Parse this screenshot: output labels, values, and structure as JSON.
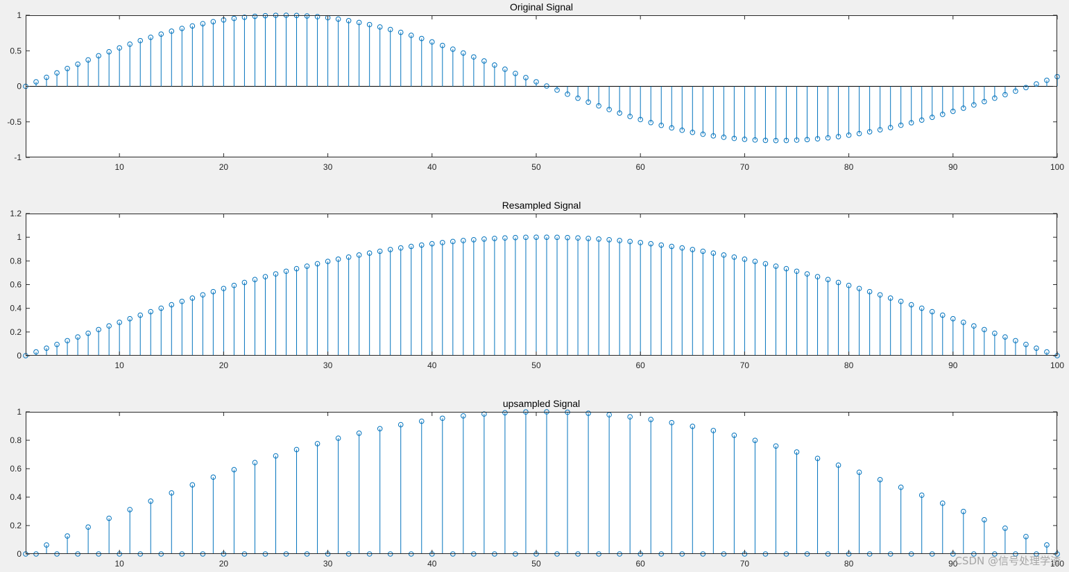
{
  "colors": {
    "figure_bg": "#f0f0f0",
    "axes_bg": "#ffffff",
    "axes_line": "#262626",
    "stem": "#0072bd"
  },
  "watermark": "CSDN @信号处理学渣",
  "chart_data": [
    {
      "type": "stem",
      "title": "Original Signal",
      "xlim": [
        1,
        100
      ],
      "ylim": [
        -1,
        1
      ],
      "xticks": [
        10,
        20,
        30,
        40,
        50,
        60,
        70,
        80,
        90,
        100
      ],
      "yticks": [
        -1,
        -0.5,
        0,
        0.5,
        1
      ],
      "ytick_labels": [
        "-1",
        "-0.5",
        "0",
        "0.5",
        "1"
      ],
      "x": [
        1,
        2,
        3,
        4,
        5,
        6,
        7,
        8,
        9,
        10,
        11,
        12,
        13,
        14,
        15,
        16,
        17,
        18,
        19,
        20,
        21,
        22,
        23,
        24,
        25,
        26,
        27,
        28,
        29,
        30,
        31,
        32,
        33,
        34,
        35,
        36,
        37,
        38,
        39,
        40,
        41,
        42,
        43,
        44,
        45,
        46,
        47,
        48,
        49,
        50,
        51,
        52,
        53,
        54,
        55,
        56,
        57,
        58,
        59,
        60,
        61,
        62,
        63,
        64,
        65,
        66,
        67,
        68,
        69,
        70,
        71,
        72,
        73,
        74,
        75,
        76,
        77,
        78,
        79,
        80,
        81,
        82,
        83,
        84,
        85,
        86,
        87,
        88,
        89,
        90,
        91,
        92,
        93,
        94,
        95,
        96,
        97,
        98,
        99,
        100
      ],
      "values": [
        0,
        0.0634,
        0.1266,
        0.1893,
        0.2511,
        0.312,
        0.3717,
        0.4298,
        0.4862,
        0.5406,
        0.5929,
        0.6428,
        0.6901,
        0.7346,
        0.7761,
        0.8146,
        0.8497,
        0.8815,
        0.9096,
        0.9341,
        0.9549,
        0.9718,
        0.9848,
        0.9938,
        0.9989,
        1.0,
        0.9971,
        0.9902,
        0.9794,
        0.9647,
        0.9461,
        0.9238,
        0.8978,
        0.8683,
        0.8353,
        0.7991,
        0.7597,
        0.7174,
        0.6724,
        0.6248,
        0.5748,
        0.5228,
        0.469,
        0.4135,
        0.3568,
        0.299,
        0.2405,
        0.1816,
        0.1225,
        0.0635,
        0.0048,
        -0.0534,
        -0.1108,
        -0.1671,
        -0.222,
        -0.2753,
        -0.3268,
        -0.3762,
        -0.4233,
        -0.4679,
        -0.5098,
        -0.5489,
        -0.585,
        -0.618,
        -0.6477,
        -0.6741,
        -0.6971,
        -0.7167,
        -0.7329,
        -0.7455,
        -0.7547,
        -0.7604,
        -0.7627,
        -0.7616,
        -0.7571,
        -0.7494,
        -0.7385,
        -0.7245,
        -0.7075,
        -0.6875,
        -0.6647,
        -0.6392,
        -0.6111,
        -0.5805,
        -0.5475,
        -0.5123,
        -0.4751,
        -0.4358,
        -0.3947,
        -0.3519,
        -0.3076,
        -0.2619,
        -0.215,
        -0.1669,
        -0.1179,
        -0.0681,
        -0.0177,
        0.0331,
        0.0842,
        0.1354
      ]
    },
    {
      "type": "stem",
      "title": "Resampled Signal",
      "xlim": [
        1,
        100
      ],
      "ylim": [
        0,
        1.2
      ],
      "xticks": [
        10,
        20,
        30,
        40,
        50,
        60,
        70,
        80,
        90,
        100
      ],
      "yticks": [
        0,
        0.2,
        0.4,
        0.6,
        0.8,
        1,
        1.2
      ],
      "ytick_labels": [
        "0",
        "0.2",
        "0.4",
        "0.6",
        "0.8",
        "1",
        "1.2"
      ],
      "x": [
        1,
        2,
        3,
        4,
        5,
        6,
        7,
        8,
        9,
        10,
        11,
        12,
        13,
        14,
        15,
        16,
        17,
        18,
        19,
        20,
        21,
        22,
        23,
        24,
        25,
        26,
        27,
        28,
        29,
        30,
        31,
        32,
        33,
        34,
        35,
        36,
        37,
        38,
        39,
        40,
        41,
        42,
        43,
        44,
        45,
        46,
        47,
        48,
        49,
        50,
        51,
        52,
        53,
        54,
        55,
        56,
        57,
        58,
        59,
        60,
        61,
        62,
        63,
        64,
        65,
        66,
        67,
        68,
        69,
        70,
        71,
        72,
        73,
        74,
        75,
        76,
        77,
        78,
        79,
        80,
        81,
        82,
        83,
        84,
        85,
        86,
        87,
        88,
        89,
        90,
        91,
        92,
        93,
        94,
        95,
        96,
        97,
        98,
        99,
        100
      ],
      "values": [
        0.0,
        0.0317,
        0.0634,
        0.0951,
        0.1266,
        0.158,
        0.1893,
        0.2203,
        0.2511,
        0.2817,
        0.312,
        0.342,
        0.3717,
        0.4009,
        0.4298,
        0.4582,
        0.4862,
        0.5137,
        0.5406,
        0.5671,
        0.5929,
        0.6182,
        0.6428,
        0.6668,
        0.6901,
        0.7127,
        0.7346,
        0.7557,
        0.7761,
        0.7957,
        0.8146,
        0.8326,
        0.8497,
        0.866,
        0.8815,
        0.896,
        0.9096,
        0.9224,
        0.9341,
        0.945,
        0.9549,
        0.9638,
        0.9718,
        0.9788,
        0.9848,
        0.9898,
        0.9938,
        0.9969,
        0.9989,
        0.9999,
        0.9999,
        0.9989,
        0.9969,
        0.9938,
        0.9898,
        0.9848,
        0.9788,
        0.9718,
        0.9638,
        0.9549,
        0.945,
        0.9341,
        0.9224,
        0.9096,
        0.896,
        0.8815,
        0.866,
        0.8497,
        0.8326,
        0.8146,
        0.7957,
        0.7761,
        0.7557,
        0.7346,
        0.7127,
        0.6901,
        0.6668,
        0.6428,
        0.6182,
        0.5929,
        0.5671,
        0.5406,
        0.5137,
        0.4862,
        0.4582,
        0.4298,
        0.4009,
        0.3717,
        0.342,
        0.312,
        0.2817,
        0.2511,
        0.2203,
        0.1893,
        0.158,
        0.1266,
        0.0951,
        0.0634,
        0.0317,
        0.0
      ]
    },
    {
      "type": "stem",
      "title": "upsampled Signal",
      "xlim": [
        1,
        100
      ],
      "ylim": [
        0,
        1
      ],
      "xticks": [
        10,
        20,
        30,
        40,
        50,
        60,
        70,
        80,
        90,
        100
      ],
      "yticks": [
        0,
        0.2,
        0.4,
        0.6,
        0.8,
        1
      ],
      "ytick_labels": [
        "0",
        "0.2",
        "0.4",
        "0.6",
        "0.8",
        "1"
      ],
      "x": [
        1,
        2,
        3,
        4,
        5,
        6,
        7,
        8,
        9,
        10,
        11,
        12,
        13,
        14,
        15,
        16,
        17,
        18,
        19,
        20,
        21,
        22,
        23,
        24,
        25,
        26,
        27,
        28,
        29,
        30,
        31,
        32,
        33,
        34,
        35,
        36,
        37,
        38,
        39,
        40,
        41,
        42,
        43,
        44,
        45,
        46,
        47,
        48,
        49,
        50,
        51,
        52,
        53,
        54,
        55,
        56,
        57,
        58,
        59,
        60,
        61,
        62,
        63,
        64,
        65,
        66,
        67,
        68,
        69,
        70,
        71,
        72,
        73,
        74,
        75,
        76,
        77,
        78,
        79,
        80,
        81,
        82,
        83,
        84,
        85,
        86,
        87,
        88,
        89,
        90,
        91,
        92,
        93,
        94,
        95,
        96,
        97,
        98,
        99,
        100
      ],
      "values": [
        0.0,
        0,
        0.0634,
        0,
        0.1266,
        0,
        0.1893,
        0,
        0.2511,
        0,
        0.312,
        0,
        0.3717,
        0,
        0.4298,
        0,
        0.4862,
        0,
        0.5406,
        0,
        0.5929,
        0,
        0.6428,
        0,
        0.6901,
        0,
        0.7346,
        0,
        0.7761,
        0,
        0.8146,
        0,
        0.8497,
        0,
        0.8815,
        0,
        0.9096,
        0,
        0.9341,
        0,
        0.9549,
        0,
        0.9718,
        0,
        0.9848,
        0,
        0.9938,
        0,
        0.9989,
        0,
        1.0,
        0,
        0.9971,
        0,
        0.9902,
        0,
        0.9794,
        0,
        0.9647,
        0,
        0.9461,
        0,
        0.9238,
        0,
        0.8978,
        0,
        0.8683,
        0,
        0.8353,
        0,
        0.7991,
        0,
        0.7597,
        0,
        0.7174,
        0,
        0.6724,
        0,
        0.6248,
        0,
        0.5748,
        0,
        0.5228,
        0,
        0.469,
        0,
        0.4135,
        0,
        0.3568,
        0,
        0.299,
        0,
        0.2405,
        0,
        0.1816,
        0,
        0.1225,
        0,
        0.0635,
        0
      ]
    }
  ]
}
